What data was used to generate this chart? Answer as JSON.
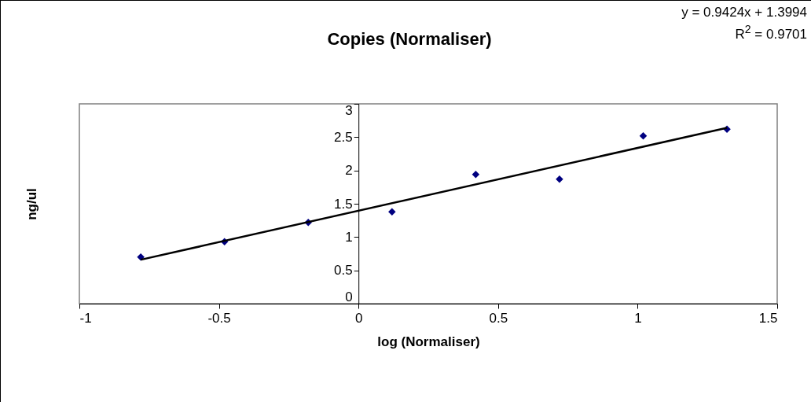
{
  "chart_data": {
    "type": "scatter",
    "title": "Copies (Normaliser)",
    "xlabel": "log (Normaliser)",
    "ylabel": "ng/ul",
    "annotations": [
      "y = 0.9424x + 1.3994",
      "R$^{2}$ = 0.9701"
    ],
    "xlim": [
      -1,
      1.5
    ],
    "xticks": [
      -1,
      -0.5,
      0,
      0.5,
      1,
      1.5
    ],
    "ylim": [
      0,
      3
    ],
    "yticks": [
      0,
      0.5,
      1,
      1.5,
      2,
      2.5,
      3
    ],
    "grid": false,
    "series": [
      {
        "color": "#000080",
        "marker": "diamond",
        "x": [
          -0.78,
          -0.48,
          -0.18,
          0.12,
          0.42,
          0.72,
          1.02,
          1.32
        ],
        "values": [
          0.7,
          0.93,
          1.22,
          1.38,
          1.94,
          1.87,
          2.52,
          2.62
        ]
      },
      {
        "type": "line",
        "color": "#000000",
        "marker": "none",
        "line_style": "solid",
        "x": [
          -0.78,
          1.32
        ],
        "values": [
          0.66,
          2.64
        ]
      }
    ]
  }
}
